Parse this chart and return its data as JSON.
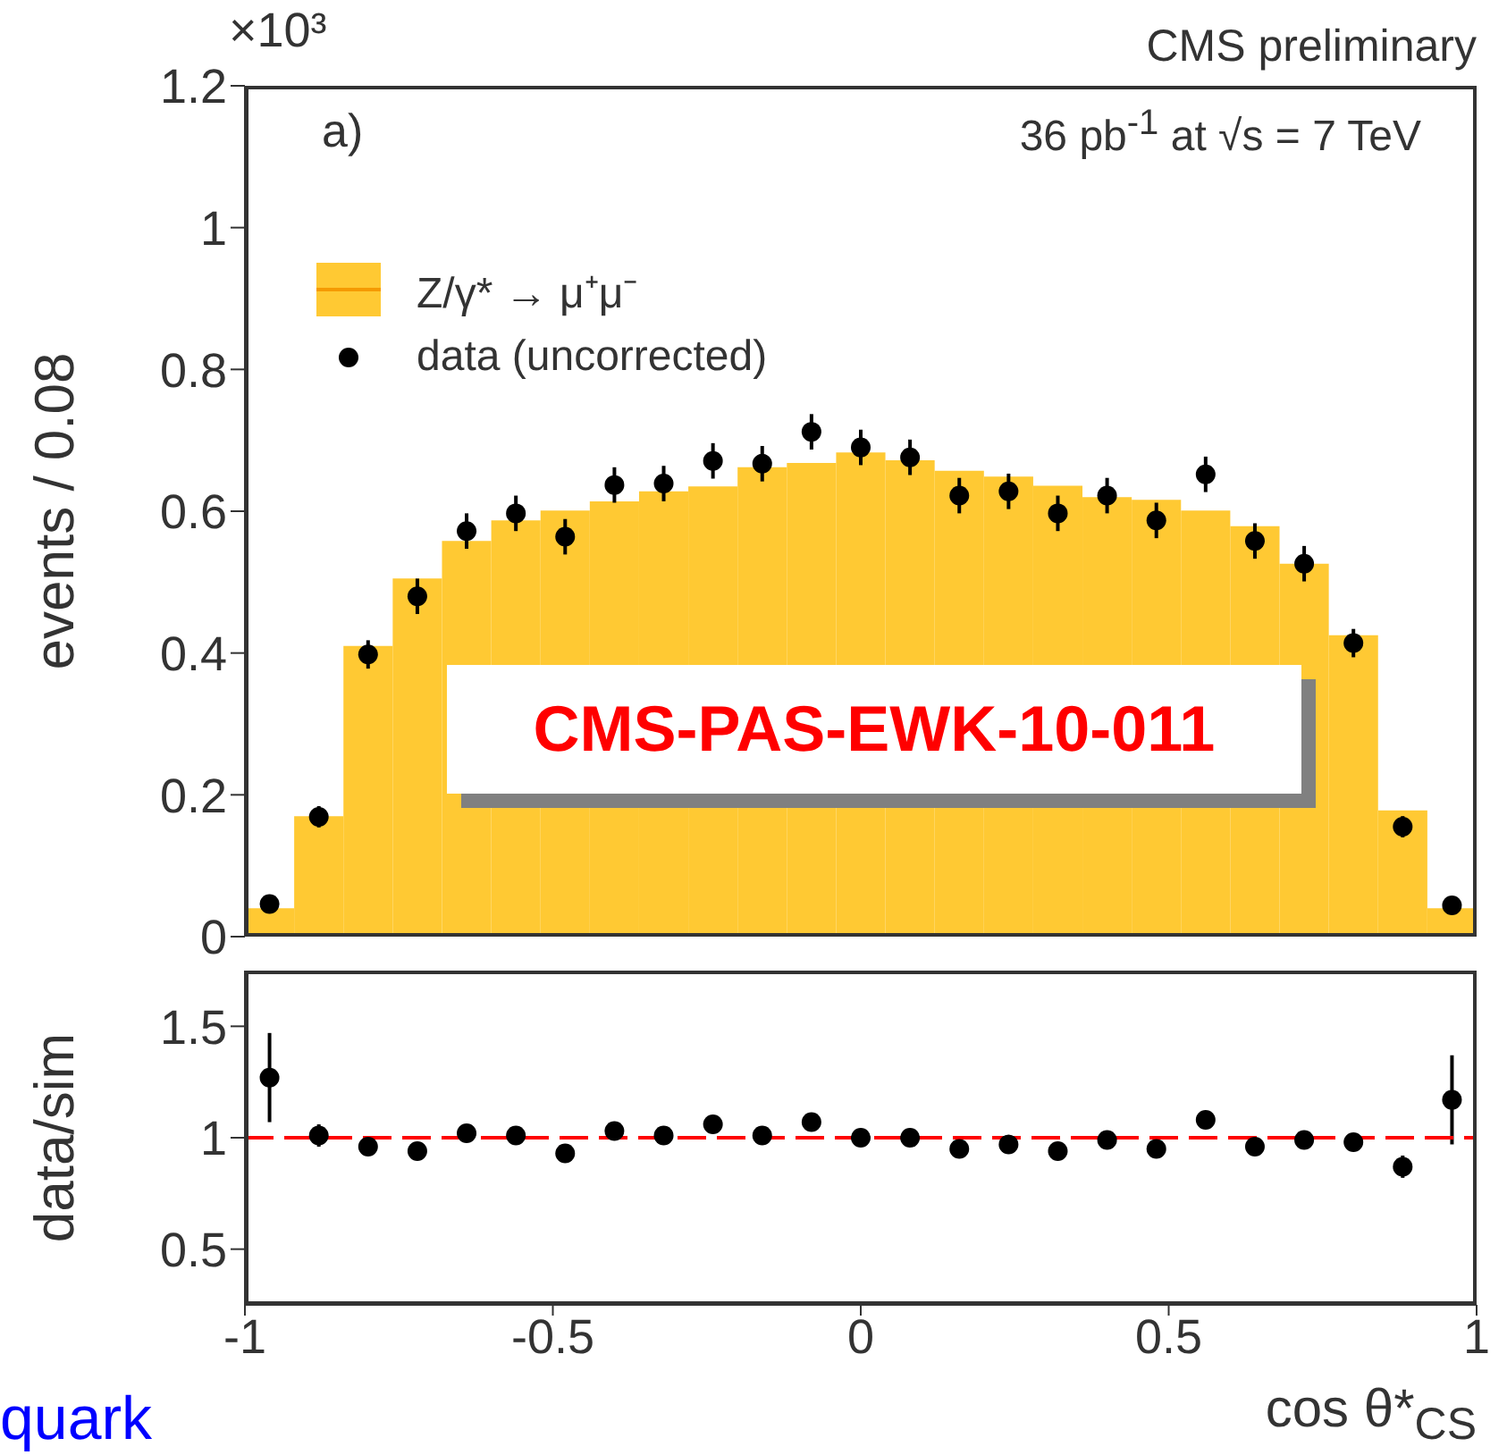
{
  "chart_data": [
    {
      "type": "histogram",
      "title": "CMS preliminary",
      "ylabel": "events / 0.08",
      "annotations": [
        "×10³",
        "a)",
        "36 pb$^{-1}$ at √s = 7 TeV",
        "CMS-PAS-EWK-10-011"
      ],
      "bins": [
        -1,
        -0.92,
        -0.84,
        -0.76,
        -0.68,
        -0.6,
        -0.52,
        -0.44,
        -0.36,
        -0.28,
        -0.2,
        -0.12,
        -0.04,
        0.04,
        0.12,
        0.2,
        0.28,
        0.36,
        0.44,
        0.52,
        0.6,
        0.68,
        0.76,
        0.84,
        0.92,
        1
      ],
      "series": [
        {
          "name": "Z/γ* → μ⁺μ⁻",
          "color": "#ffc933",
          "values": [
            0.04,
            0.17,
            0.41,
            0.505,
            0.558,
            0.587,
            0.601,
            0.614,
            0.628,
            0.635,
            0.662,
            0.668,
            0.683,
            0.672,
            0.657,
            0.649,
            0.636,
            0.62,
            0.616,
            0.601,
            0.579,
            0.526,
            0.425,
            0.178,
            0.04
          ]
        },
        {
          "type": "scatter",
          "name": "data (uncorrected)",
          "color": "#000000",
          "x": [
            -0.96,
            -0.88,
            -0.8,
            -0.72,
            -0.64,
            -0.56,
            -0.48,
            -0.4,
            -0.32,
            -0.24,
            -0.16,
            -0.08,
            0,
            0.08,
            0.16,
            0.24,
            0.32,
            0.4,
            0.48,
            0.56,
            0.64,
            0.72,
            0.8,
            0.88,
            0.96
          ],
          "values": [
            0.046,
            0.169,
            0.398,
            0.48,
            0.572,
            0.597,
            0.564,
            0.637,
            0.639,
            0.671,
            0.667,
            0.712,
            0.69,
            0.676,
            0.622,
            0.628,
            0.597,
            0.622,
            0.587,
            0.652,
            0.558,
            0.526,
            0.414,
            0.155,
            0.044
          ],
          "errors": [
            0.01,
            0.015,
            0.02,
            0.025,
            0.025,
            0.025,
            0.025,
            0.025,
            0.025,
            0.025,
            0.025,
            0.025,
            0.025,
            0.025,
            0.025,
            0.025,
            0.025,
            0.025,
            0.025,
            0.025,
            0.025,
            0.025,
            0.02,
            0.015,
            0.01
          ]
        }
      ],
      "xlim": [
        -1,
        1
      ],
      "xticks": [
        -1,
        -0.5,
        0,
        0.5,
        1
      ],
      "ylim": [
        0,
        1.2
      ],
      "yticks": [
        0,
        0.2,
        0.4,
        0.6,
        0.8,
        1,
        1.2
      ],
      "tick_labels": "y",
      "legend": "top left",
      "marker": "circle"
    },
    {
      "type": "scatter",
      "xlabel": "cos θ*$_{CS}$",
      "ylabel": "data/sim",
      "annotations": [
        "quark"
      ],
      "series": [
        {
          "color": "#000000",
          "x": [
            -0.96,
            -0.88,
            -0.8,
            -0.72,
            -0.64,
            -0.56,
            -0.48,
            -0.4,
            -0.32,
            -0.24,
            -0.16,
            -0.08,
            0,
            0.08,
            0.16,
            0.24,
            0.32,
            0.4,
            0.48,
            0.56,
            0.64,
            0.72,
            0.8,
            0.88,
            0.96
          ],
          "values": [
            1.27,
            1.01,
            0.96,
            0.94,
            1.02,
            1.01,
            0.93,
            1.03,
            1.01,
            1.06,
            1.01,
            1.07,
            1.0,
            1.0,
            0.95,
            0.97,
            0.94,
            0.99,
            0.95,
            1.08,
            0.96,
            0.99,
            0.98,
            0.87,
            1.17
          ],
          "errors": [
            0.2,
            0.05,
            0.03,
            0.03,
            0.03,
            0.03,
            0.03,
            0.03,
            0.03,
            0.03,
            0.03,
            0.03,
            0.03,
            0.03,
            0.03,
            0.03,
            0.03,
            0.03,
            0.03,
            0.03,
            0.03,
            0.03,
            0.03,
            0.05,
            0.2
          ]
        }
      ],
      "xlim": [
        -1,
        1
      ],
      "xticks": [
        -1,
        -0.5,
        0,
        0.5,
        1
      ],
      "ylim": [
        0.25,
        1.75
      ],
      "yticks": [
        0.5,
        1,
        1.5
      ],
      "ref_lines": [
        {
          "axis": "y",
          "value": 1,
          "color": "#ff0000",
          "line_style": "dashed"
        }
      ],
      "marker": "circle"
    }
  ]
}
